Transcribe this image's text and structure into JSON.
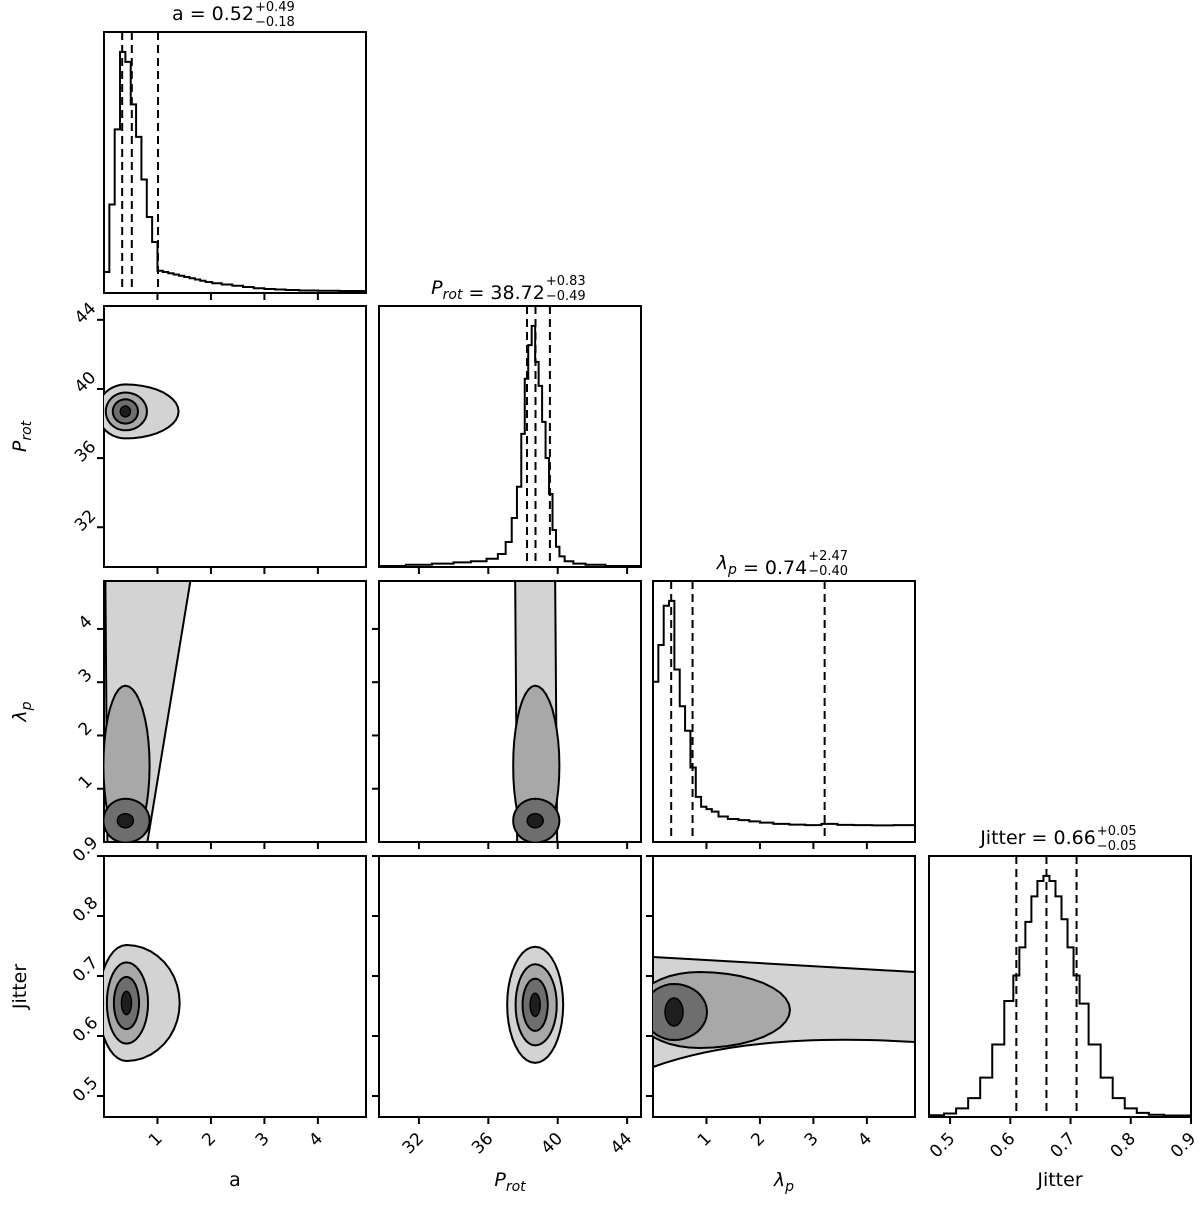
{
  "chart_data": {
    "type": "corner",
    "parameters": [
      {
        "key": "a",
        "label": "a",
        "italic": false,
        "sub": "",
        "title": {
          "prefix": "a",
          "value": "0.52",
          "plus": "+0.49",
          "minus": "−0.18"
        },
        "range": [
          0,
          4.9
        ],
        "ticks": [
          1,
          2,
          3,
          4
        ],
        "tick_labels": [
          "1",
          "2",
          "3",
          "4"
        ],
        "quantiles": [
          0.34,
          0.52,
          1.01
        ]
      },
      {
        "key": "p_rot",
        "label": "P",
        "italic": true,
        "sub": "rot",
        "title": {
          "prefix": "P",
          "sub": "rot",
          "value": "38.72",
          "plus": "+0.83",
          "minus": "−0.49"
        },
        "range": [
          29.7,
          44.8
        ],
        "ticks": [
          32,
          36,
          40,
          44
        ],
        "tick_labels": [
          "32",
          "36",
          "40",
          "44"
        ],
        "quantiles": [
          38.23,
          38.72,
          39.55
        ]
      },
      {
        "key": "lambda_p",
        "label": "λ",
        "italic": true,
        "sub": "p",
        "title": {
          "prefix": "λ",
          "sub": "p",
          "value": "0.74",
          "plus": "+2.47",
          "minus": "−0.40"
        },
        "range": [
          0,
          4.9
        ],
        "ticks": [
          1,
          2,
          3,
          4
        ],
        "tick_labels": [
          "1",
          "2",
          "3",
          "4"
        ],
        "quantiles": [
          0.34,
          0.74,
          3.21
        ]
      },
      {
        "key": "jitter",
        "label": "Jitter",
        "italic": false,
        "sub": "",
        "title": {
          "prefix": "Jitter",
          "value": "0.66",
          "plus": "+0.05",
          "minus": "−0.05"
        },
        "range": [
          0.465,
          0.9
        ],
        "ticks": [
          0.5,
          0.6,
          0.7,
          0.8,
          0.9
        ],
        "tick_labels": [
          "0.5",
          "0.6",
          "0.7",
          "0.8",
          "0.9"
        ],
        "quantiles": [
          0.61,
          0.66,
          0.71
        ]
      }
    ],
    "histograms": {
      "a": {
        "x": [
          0.05,
          0.15,
          0.25,
          0.35,
          0.45,
          0.55,
          0.65,
          0.75,
          0.85,
          0.95,
          1.05,
          1.15,
          1.25,
          1.35,
          1.45,
          1.55,
          1.65,
          1.75,
          1.85,
          1.95,
          2.1,
          2.3,
          2.5,
          2.7,
          2.9,
          3.1,
          3.3,
          3.5,
          3.8,
          4.2,
          4.6
        ],
        "y": [
          0.08,
          0.35,
          0.65,
          0.96,
          0.92,
          0.75,
          0.62,
          0.45,
          0.3,
          0.2,
          0.085,
          0.08,
          0.075,
          0.07,
          0.065,
          0.06,
          0.055,
          0.05,
          0.045,
          0.04,
          0.035,
          0.03,
          0.025,
          0.02,
          0.015,
          0.012,
          0.01,
          0.008,
          0.006,
          0.005,
          0.004
        ]
      },
      "p_rot": {
        "x": [
          30.5,
          32.0,
          33.5,
          34.5,
          35.5,
          36.3,
          36.8,
          37.2,
          37.5,
          37.8,
          38.0,
          38.2,
          38.4,
          38.6,
          38.8,
          39.0,
          39.2,
          39.4,
          39.6,
          39.8,
          40.0,
          40.2,
          40.6,
          41.2,
          42.0,
          43.5
        ],
        "y": [
          0.0,
          0.005,
          0.01,
          0.015,
          0.02,
          0.03,
          0.05,
          0.1,
          0.2,
          0.33,
          0.55,
          0.78,
          0.92,
          1.0,
          0.85,
          0.75,
          0.6,
          0.45,
          0.3,
          0.15,
          0.08,
          0.04,
          0.02,
          0.01,
          0.005,
          0.0
        ]
      },
      "lambda_p": {
        "x": [
          0.05,
          0.15,
          0.25,
          0.35,
          0.45,
          0.55,
          0.65,
          0.75,
          0.85,
          0.95,
          1.05,
          1.15,
          1.3,
          1.5,
          1.7,
          1.9,
          2.1,
          2.4,
          2.7,
          3.0,
          3.3,
          3.6,
          3.9,
          4.3,
          4.7
        ],
        "y": [
          0.65,
          0.8,
          0.96,
          0.98,
          0.7,
          0.55,
          0.45,
          0.3,
          0.18,
          0.14,
          0.13,
          0.12,
          0.1,
          0.09,
          0.085,
          0.08,
          0.075,
          0.07,
          0.067,
          0.065,
          0.07,
          0.066,
          0.065,
          0.064,
          0.065
        ]
      },
      "jitter": {
        "x": [
          0.48,
          0.5,
          0.52,
          0.54,
          0.56,
          0.58,
          0.6,
          0.61,
          0.62,
          0.63,
          0.64,
          0.65,
          0.66,
          0.67,
          0.68,
          0.69,
          0.7,
          0.71,
          0.72,
          0.74,
          0.76,
          0.78,
          0.8,
          0.82,
          0.84,
          0.87
        ],
        "y": [
          0.003,
          0.01,
          0.03,
          0.07,
          0.15,
          0.28,
          0.45,
          0.55,
          0.66,
          0.76,
          0.86,
          0.92,
          0.94,
          0.92,
          0.86,
          0.77,
          0.66,
          0.55,
          0.44,
          0.28,
          0.15,
          0.07,
          0.03,
          0.012,
          0.005,
          0.002
        ]
      }
    },
    "contours": [
      {
        "x": "a",
        "y": "p_rot",
        "center": [
          0.4,
          38.7
        ],
        "widths": [
          0.35,
          0.7
        ],
        "extra": "tail"
      },
      {
        "x": "a",
        "y": "lambda_p",
        "center": [
          0.4,
          0.4
        ],
        "widths": [
          0.3,
          0.6
        ],
        "extra": "column"
      },
      {
        "x": "p_rot",
        "y": "lambda_p",
        "center": [
          38.7,
          0.4
        ],
        "widths": [
          0.6,
          1.0
        ],
        "extra": "column"
      },
      {
        "x": "a",
        "y": "jitter",
        "center": [
          0.42,
          0.655
        ],
        "widths": [
          0.35,
          0.06
        ],
        "extra": "tail"
      },
      {
        "x": "p_rot",
        "y": "jitter",
        "center": [
          38.7,
          0.652
        ],
        "widths": [
          0.7,
          0.06
        ],
        "extra": "none"
      },
      {
        "x": "lambda_p",
        "y": "jitter",
        "center": [
          0.3,
          0.64
        ],
        "widths": [
          0.5,
          0.05
        ],
        "extra": "band"
      }
    ],
    "grid": false,
    "legend": "none"
  }
}
